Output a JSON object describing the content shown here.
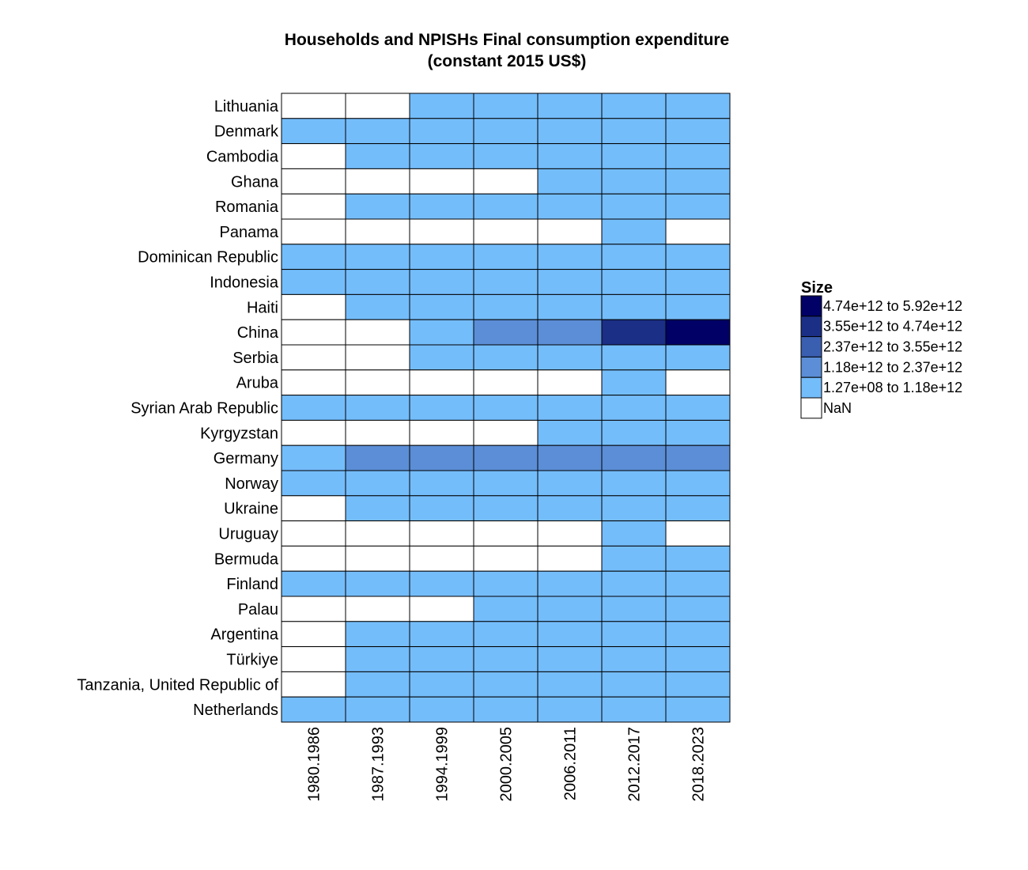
{
  "chart_data": {
    "type": "heatmap",
    "title": "Households and NPISHs Final consumption expenditure",
    "subtitle": "(constant 2015 US$)",
    "rows": [
      "Lithuania",
      "Denmark",
      "Cambodia",
      "Ghana",
      "Romania",
      "Panama",
      "Dominican Republic",
      "Indonesia",
      "Haiti",
      "China",
      "Serbia",
      "Aruba",
      "Syrian Arab Republic",
      "Kyrgyzstan",
      "Germany",
      "Norway",
      "Ukraine",
      "Uruguay",
      "Bermuda",
      "Finland",
      "Palau",
      "Argentina",
      "Türkiye",
      "Tanzania, United Republic of",
      "Netherlands"
    ],
    "columns": [
      "1980.1986",
      "1987.1993",
      "1994.1999",
      "2000.2005",
      "2006.2011",
      "2012.2017",
      "2018.2023"
    ],
    "bins": [
      {
        "label": "4.74e+12 to 5.92e+12",
        "color": "#000066"
      },
      {
        "label": "3.55e+12 to 4.74e+12",
        "color": "#1b2f86"
      },
      {
        "label": "2.37e+12 to 3.55e+12",
        "color": "#3a5eb0"
      },
      {
        "label": "1.18e+12 to 2.37e+12",
        "color": "#5b8ed6"
      },
      {
        "label": "1.27e+08 to 1.18e+12",
        "color": "#74bdfb"
      },
      {
        "label": "NaN",
        "color": "#ffffff"
      }
    ],
    "cells": [
      [
        5,
        5,
        4,
        4,
        4,
        4,
        4
      ],
      [
        4,
        4,
        4,
        4,
        4,
        4,
        4
      ],
      [
        5,
        4,
        4,
        4,
        4,
        4,
        4
      ],
      [
        5,
        5,
        5,
        5,
        4,
        4,
        4
      ],
      [
        5,
        4,
        4,
        4,
        4,
        4,
        4
      ],
      [
        5,
        5,
        5,
        5,
        5,
        4,
        5
      ],
      [
        4,
        4,
        4,
        4,
        4,
        4,
        4
      ],
      [
        4,
        4,
        4,
        4,
        4,
        4,
        4
      ],
      [
        5,
        4,
        4,
        4,
        4,
        4,
        4
      ],
      [
        5,
        5,
        4,
        3,
        3,
        1,
        0
      ],
      [
        5,
        5,
        4,
        4,
        4,
        4,
        4
      ],
      [
        5,
        5,
        5,
        5,
        5,
        4,
        5
      ],
      [
        4,
        4,
        4,
        4,
        4,
        4,
        4
      ],
      [
        5,
        5,
        5,
        5,
        4,
        4,
        4
      ],
      [
        4,
        3,
        3,
        3,
        3,
        3,
        3
      ],
      [
        4,
        4,
        4,
        4,
        4,
        4,
        4
      ],
      [
        5,
        4,
        4,
        4,
        4,
        4,
        4
      ],
      [
        5,
        5,
        5,
        5,
        5,
        4,
        5
      ],
      [
        5,
        5,
        5,
        5,
        5,
        4,
        4
      ],
      [
        4,
        4,
        4,
        4,
        4,
        4,
        4
      ],
      [
        5,
        5,
        5,
        4,
        4,
        4,
        4
      ],
      [
        5,
        4,
        4,
        4,
        4,
        4,
        4
      ],
      [
        5,
        4,
        4,
        4,
        4,
        4,
        4
      ],
      [
        5,
        4,
        4,
        4,
        4,
        4,
        4
      ],
      [
        4,
        4,
        4,
        4,
        4,
        4,
        4
      ]
    ],
    "legend": {
      "title": "Size",
      "position": "right"
    }
  }
}
